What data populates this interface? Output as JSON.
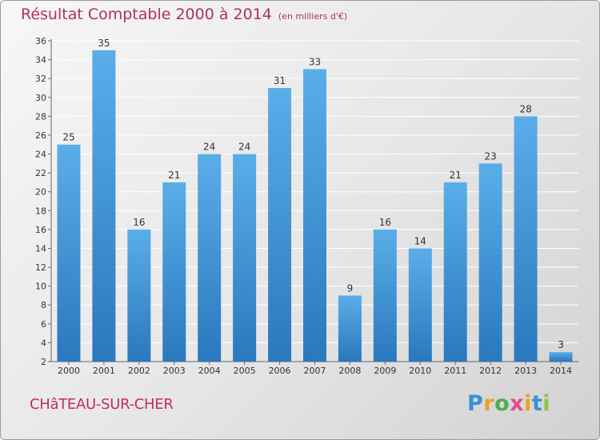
{
  "title": "Résultat Comptable 2000 à 2014",
  "subtitle": "(en milliers d'€)",
  "city": "CHâTEAU-SUR-CHER",
  "logo": {
    "letters": [
      "P",
      "r",
      "o",
      "x",
      "i",
      "t",
      "i"
    ],
    "colors": [
      "#3a8fd8",
      "#f0a020",
      "#4caf50",
      "#e64a8a",
      "#f0a020",
      "#3a8fd8",
      "#8bc34a"
    ]
  },
  "colors": {
    "bar_top": "#5aaee8",
    "bar_bottom": "#2a78be",
    "grid": "#ffffff",
    "axis": "#666666"
  },
  "chart_data": {
    "type": "bar",
    "title": "Résultat Comptable 2000 à 2014",
    "subtitle": "(en milliers d'€)",
    "categories": [
      "2000",
      "2001",
      "2002",
      "2003",
      "2004",
      "2005",
      "2006",
      "2007",
      "2008",
      "2009",
      "2010",
      "2011",
      "2012",
      "2013",
      "2014"
    ],
    "values": [
      25,
      35,
      16,
      21,
      24,
      24,
      31,
      33,
      9,
      16,
      14,
      21,
      23,
      28,
      3
    ],
    "ylim": [
      2,
      36
    ],
    "yticks": [
      2,
      4,
      6,
      8,
      10,
      12,
      14,
      16,
      18,
      20,
      22,
      24,
      26,
      28,
      30,
      32,
      34,
      36
    ],
    "grid": true,
    "data_labels": true
  }
}
